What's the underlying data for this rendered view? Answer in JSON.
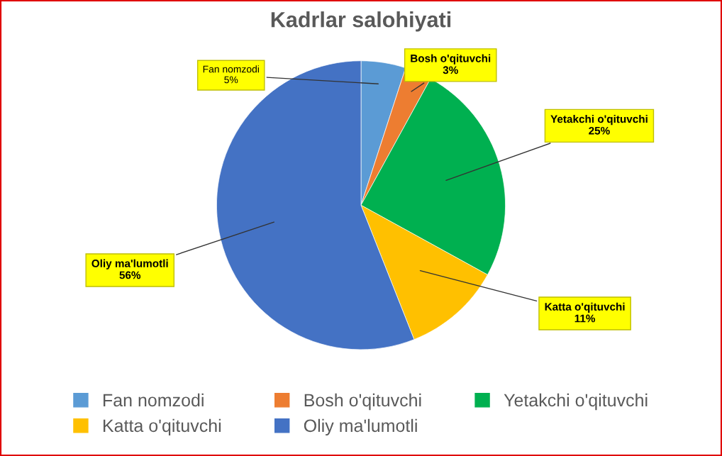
{
  "chart_data": {
    "type": "pie",
    "title": "Kadrlar salohiyati",
    "categories": [
      "Fan nomzodi",
      "Bosh o'qituvchi",
      "Yetakchi o'qituvchi",
      "Katta o'qituvchi",
      "Oliy ma'lumotli"
    ],
    "values": [
      5,
      3,
      25,
      11,
      56
    ],
    "colors": [
      "#5b9bd5",
      "#ed7d31",
      "#00b050",
      "#ffc000",
      "#4472c4"
    ],
    "value_labels": [
      "5%",
      "3%",
      "25%",
      "11%",
      "56%"
    ],
    "legend": "bottom"
  }
}
